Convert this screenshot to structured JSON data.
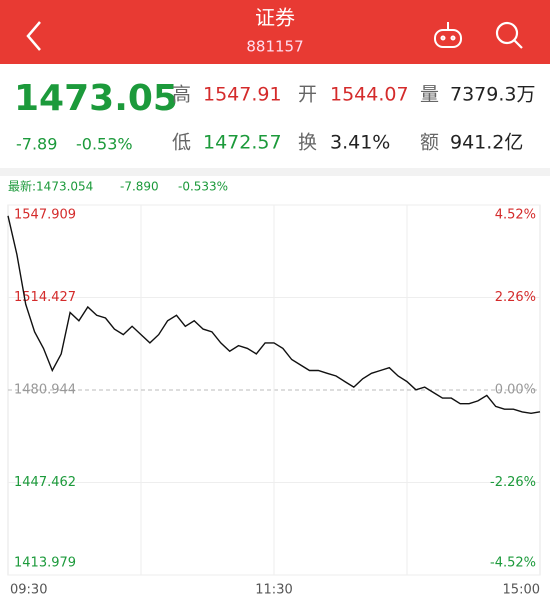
{
  "header": {
    "title": "证券",
    "code": "881157"
  },
  "quote": {
    "price": "1473.05",
    "change": "-7.89",
    "change_pct": "-0.53%",
    "fields": [
      {
        "label": "高",
        "value": "1547.91"
      },
      {
        "label": "开",
        "value": "1544.07"
      },
      {
        "label": "量",
        "value": "7379.3万"
      },
      {
        "label": "低",
        "value": "1472.57"
      },
      {
        "label": "换",
        "value": "3.41%"
      },
      {
        "label": "额",
        "value": "941.2亿"
      }
    ],
    "latest": {
      "label": "最新:1473.054",
      "change": "-7.890",
      "change_pct": "-0.533%"
    }
  },
  "chart_data": {
    "type": "line",
    "categories": [
      "09:30",
      null,
      null,
      null,
      null,
      null,
      null,
      null,
      null,
      null,
      null,
      null,
      null,
      null,
      null,
      null,
      null,
      null,
      null,
      null,
      null,
      null,
      null,
      null,
      null,
      null,
      null,
      null,
      null,
      null,
      "11:30",
      null,
      null,
      null,
      null,
      null,
      null,
      null,
      null,
      null,
      null,
      null,
      null,
      null,
      null,
      null,
      null,
      null,
      null,
      null,
      null,
      null,
      null,
      null,
      null,
      null,
      null,
      null,
      null,
      null,
      "15:00"
    ],
    "series": [
      {
        "name": "证券",
        "color": "#111111",
        "values": [
          1544,
          1530,
          1512,
          1502,
          1496,
          1488,
          1494,
          1509,
          1506,
          1511,
          1508,
          1507,
          1503,
          1501,
          1504,
          1501,
          1498,
          1501,
          1506,
          1508,
          1504,
          1506,
          1503,
          1502,
          1498,
          1495,
          1497,
          1496,
          1494,
          1498,
          1498,
          1496,
          1492,
          1490,
          1488,
          1488,
          1487,
          1486,
          1484,
          1482,
          1485,
          1487,
          1488,
          1489,
          1486,
          1484,
          1481,
          1482,
          1480,
          1478,
          1478,
          1476,
          1476,
          1477,
          1479,
          1475,
          1474,
          1474,
          1473,
          1472.5,
          1473.05
        ]
      }
    ],
    "ylim": [
      1413.979,
      1547.909
    ],
    "yticks": [
      1547.909,
      1514.427,
      1480.944,
      1447.462,
      1413.979
    ],
    "y2lim": [
      -4.52,
      4.52
    ],
    "y2ticks": [
      {
        "value": 4.52,
        "label": "4.52%"
      },
      {
        "value": 2.26,
        "label": "2.26%"
      },
      {
        "value": 0,
        "label": "0.00%"
      },
      {
        "value": -2.26,
        "label": "-2.26%"
      },
      {
        "value": -4.52,
        "label": "-4.52%"
      }
    ],
    "grid": true
  }
}
